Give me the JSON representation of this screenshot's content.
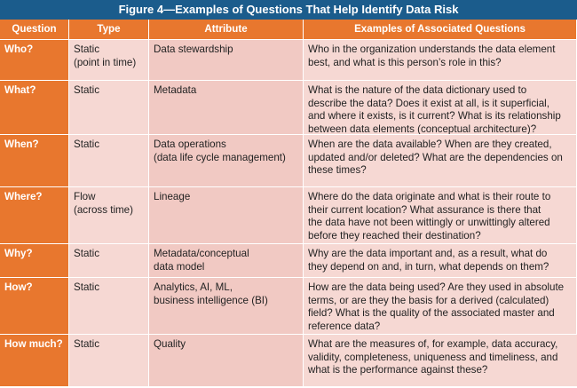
{
  "title": "Figure 4—Examples of Questions That Help Identify Data Risk",
  "table": {
    "header": [
      "Question",
      "Type",
      "Attribute",
      "Examples of Associated Questions"
    ],
    "rows": [
      [
        [
          "Who?"
        ],
        [
          "Static",
          "(point in time)"
        ],
        [
          "Data stewardship"
        ],
        [
          "Who in the organization understands the data element",
          "best, and what is this person’s role in this?"
        ]
      ],
      [
        [
          "What?"
        ],
        [
          "Static"
        ],
        [
          "Metadata"
        ],
        [
          "What is the nature of the data dictionary used to",
          "describe the data? Does it exist at all, is it superficial,",
          "and where it exists, is it current? What is its relationship",
          "between data elements (conceptual architecture)?"
        ]
      ],
      [
        [
          "When?"
        ],
        [
          "Static"
        ],
        [
          "Data operations",
          "(data life cycle management)"
        ],
        [
          "When are the data available? When are they created,",
          "updated and/or deleted? What are the dependencies on",
          "these times?"
        ]
      ],
      [
        [
          "Where?"
        ],
        [
          "Flow",
          "(across time)"
        ],
        [
          "Lineage"
        ],
        [
          "Where do the data originate and what is their route to",
          "their current location? What assurance is there that",
          "the data have not been wittingly or unwittingly altered",
          "before they reached their destination?"
        ]
      ],
      [
        [
          "Why?"
        ],
        [
          "Static"
        ],
        [
          "Metadata/conceptual",
          "data model"
        ],
        [
          "Why are the data important and, as a result, what do",
          "they depend on and, in turn, what depends on them?"
        ]
      ],
      [
        [
          "How?"
        ],
        [
          "Static"
        ],
        [
          "Analytics, AI, ML,",
          "business intelligence (BI)"
        ],
        [
          "How are the data being used? Are they used in absolute",
          "terms, or are they the basis for a derived (calculated)",
          "field? What is the quality of the associated master and",
          "reference data?"
        ]
      ],
      [
        [
          "How much?"
        ],
        [
          "Static"
        ],
        [
          "Quality"
        ],
        [
          "What are the measures of, for example, data accuracy,",
          "validity, completeness, uniqueness and timeliness, and",
          "what is the performance against these?"
        ]
      ]
    ]
  }
}
